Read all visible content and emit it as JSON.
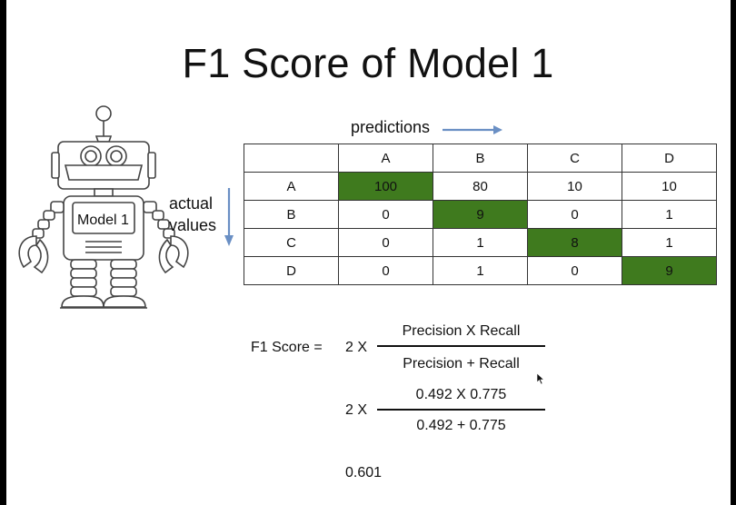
{
  "title": "F1 Score of Model 1",
  "robot": {
    "label": "Model 1"
  },
  "matrix": {
    "predictions_label": "predictions",
    "actual_label_line1": "actual",
    "actual_label_line2": "values",
    "col_headers": [
      "A",
      "B",
      "C",
      "D"
    ],
    "rows": [
      {
        "label": "A",
        "values": [
          "100",
          "80",
          "10",
          "10"
        ]
      },
      {
        "label": "B",
        "values": [
          "0",
          "9",
          "0",
          "1"
        ]
      },
      {
        "label": "C",
        "values": [
          "0",
          "1",
          "8",
          "1"
        ]
      },
      {
        "label": "D",
        "values": [
          "0",
          "1",
          "0",
          "9"
        ]
      }
    ],
    "highlight_color": "#3f7a1e"
  },
  "formula": {
    "lhs": "F1 Score =",
    "multiplier": "2 X",
    "numerator": "Precision X Recall",
    "denominator": "Precision + Recall",
    "step2_multiplier": "2 X",
    "step2_numerator": "0.492 X 0.775",
    "step2_denominator": "0.492 + 0.775",
    "result": "0.601"
  }
}
